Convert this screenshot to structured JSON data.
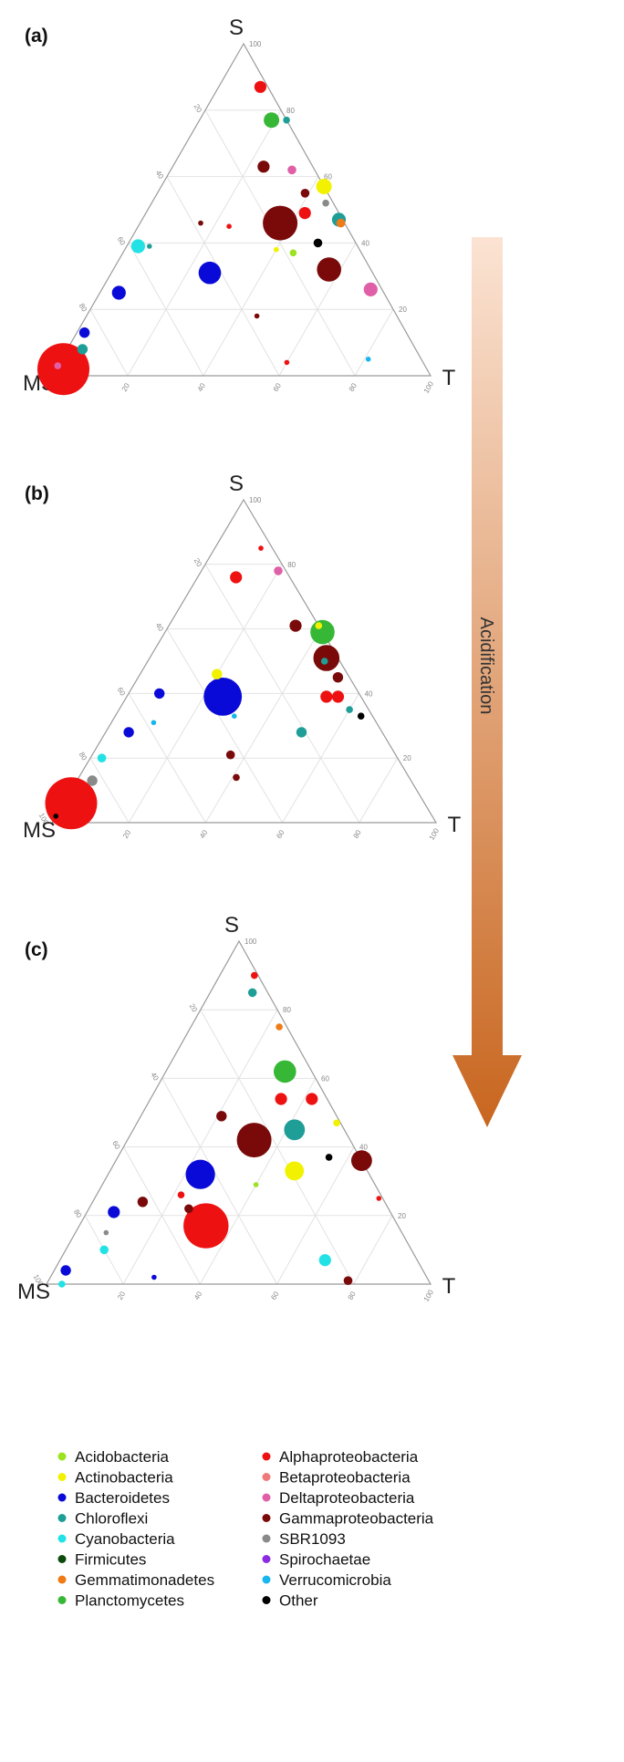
{
  "figure": {
    "arrow_label": "Acidification"
  },
  "legend": [
    {
      "name": "Acidobacteria",
      "color": "#9be320"
    },
    {
      "name": "Actinobacteria",
      "color": "#f2f200"
    },
    {
      "name": "Bacteroidetes",
      "color": "#0a0ad8"
    },
    {
      "name": "Chloroflexi",
      "color": "#1f9e97"
    },
    {
      "name": "Cyanobacteria",
      "color": "#22e2e6"
    },
    {
      "name": "Firmicutes",
      "color": "#0b4a0b"
    },
    {
      "name": "Gemmatimonadetes",
      "color": "#f07a16"
    },
    {
      "name": "Planctomycetes",
      "color": "#36b836"
    },
    {
      "name": "Alphaproteobacteria",
      "color": "#ee1111"
    },
    {
      "name": "Betaproteobacteria",
      "color": "#f07a7a"
    },
    {
      "name": "Deltaproteobacteria",
      "color": "#e060a8"
    },
    {
      "name": "Gammaproteobacteria",
      "color": "#7a0a0a"
    },
    {
      "name": "SBR1093",
      "color": "#8a8a8a"
    },
    {
      "name": "Spirochaetae",
      "color": "#8a2be2"
    },
    {
      "name": "Verrucomicrobia",
      "color": "#18b6ee"
    },
    {
      "name": "Other",
      "color": "#000000"
    }
  ],
  "chart_data": [
    {
      "type": "scatter",
      "subtype": "ternary",
      "panel": "(a)",
      "vertices": {
        "top": "S",
        "left": "MS",
        "right": "T"
      },
      "ticks": [
        "20",
        "40",
        "60",
        "80",
        "100"
      ],
      "grid": true,
      "points": [
        {
          "s": 2,
          "t": 2,
          "size": 30,
          "group": "Alphaproteobacteria"
        },
        {
          "s": 8,
          "t": 4,
          "size": 6,
          "group": "Chloroflexi"
        },
        {
          "s": 13,
          "t": 2,
          "size": 6,
          "group": "Bacteroidetes"
        },
        {
          "s": 25,
          "t": 5,
          "size": 8,
          "group": "Bacteroidetes"
        },
        {
          "s": 39,
          "t": 3,
          "size": 8,
          "group": "Cyanobacteria"
        },
        {
          "s": 39,
          "t": 6,
          "size": 3,
          "group": "Chloroflexi"
        },
        {
          "s": 31,
          "t": 26,
          "size": 13,
          "group": "Bacteroidetes"
        },
        {
          "s": 46,
          "t": 37,
          "size": 20,
          "group": "Gammaproteobacteria"
        },
        {
          "s": 49,
          "t": 42,
          "size": 7,
          "group": "Alphaproteobacteria"
        },
        {
          "s": 38,
          "t": 40,
          "size": 3,
          "group": "Actinobacteria"
        },
        {
          "s": 63,
          "t": 24,
          "size": 7,
          "group": "Gammaproteobacteria"
        },
        {
          "s": 62,
          "t": 32,
          "size": 5,
          "group": "Deltaproteobacteria"
        },
        {
          "s": 77,
          "t": 19,
          "size": 9,
          "group": "Planctomycetes"
        },
        {
          "s": 87,
          "t": 11,
          "size": 7,
          "group": "Alphaproteobacteria"
        },
        {
          "s": 77,
          "t": 23,
          "size": 4,
          "group": "Chloroflexi"
        },
        {
          "s": 57,
          "t": 43,
          "size": 9,
          "group": "Actinobacteria"
        },
        {
          "s": 47,
          "t": 52,
          "size": 8,
          "group": "Chloroflexi"
        },
        {
          "s": 55,
          "t": 39,
          "size": 5,
          "group": "Gammaproteobacteria"
        },
        {
          "s": 52,
          "t": 46,
          "size": 4,
          "group": "SBR1093"
        },
        {
          "s": 46,
          "t": 53,
          "size": 5,
          "group": "Gemmatimonadetes"
        },
        {
          "s": 40,
          "t": 50,
          "size": 5,
          "group": "Other"
        },
        {
          "s": 32,
          "t": 57,
          "size": 14,
          "group": "Gammaproteobacteria"
        },
        {
          "s": 26,
          "t": 71,
          "size": 8,
          "group": "Deltaproteobacteria"
        },
        {
          "s": 37,
          "t": 45,
          "size": 4,
          "group": "Acidobacteria"
        },
        {
          "s": 46,
          "t": 16,
          "size": 3,
          "group": "Gammaproteobacteria"
        },
        {
          "s": 45,
          "t": 24,
          "size": 3,
          "group": "Alphaproteobacteria"
        },
        {
          "s": 3,
          "t": 0,
          "size": 4,
          "group": "Deltaproteobacteria"
        },
        {
          "s": 5,
          "t": 81,
          "size": 3,
          "group": "Verrucomicrobia"
        },
        {
          "s": 4,
          "t": 60,
          "size": 3,
          "group": "Alphaproteobacteria"
        },
        {
          "s": 18,
          "t": 45,
          "size": 3,
          "group": "Gammaproteobacteria"
        }
      ]
    },
    {
      "type": "scatter",
      "subtype": "ternary",
      "panel": "(b)",
      "vertices": {
        "top": "S",
        "left": "MS",
        "right": "T"
      },
      "ticks": [
        "20",
        "40",
        "60",
        "80",
        "100"
      ],
      "grid": true,
      "points": [
        {
          "s": 6,
          "t": 2,
          "size": 30,
          "group": "Alphaproteobacteria"
        },
        {
          "s": 13,
          "t": 4,
          "size": 6,
          "group": "SBR1093"
        },
        {
          "s": 20,
          "t": 3,
          "size": 5,
          "group": "Cyanobacteria"
        },
        {
          "s": 28,
          "t": 6,
          "size": 6,
          "group": "Bacteroidetes"
        },
        {
          "s": 40,
          "t": 8,
          "size": 6,
          "group": "Bacteroidetes"
        },
        {
          "s": 39,
          "t": 25,
          "size": 22,
          "group": "Bacteroidetes"
        },
        {
          "s": 46,
          "t": 20,
          "size": 6,
          "group": "Actinobacteria"
        },
        {
          "s": 21,
          "t": 36,
          "size": 5,
          "group": "Gammaproteobacteria"
        },
        {
          "s": 51,
          "t": 46,
          "size": 15,
          "group": "Gammaproteobacteria"
        },
        {
          "s": 59,
          "t": 41,
          "size": 14,
          "group": "Planctomycetes"
        },
        {
          "s": 61,
          "t": 33,
          "size": 7,
          "group": "Gammaproteobacteria"
        },
        {
          "s": 76,
          "t": 10,
          "size": 7,
          "group": "Alphaproteobacteria"
        },
        {
          "s": 78,
          "t": 20,
          "size": 5,
          "group": "Deltaproteobacteria"
        },
        {
          "s": 85,
          "t": 12,
          "size": 3,
          "group": "Alphaproteobacteria"
        },
        {
          "s": 61,
          "t": 39,
          "size": 4,
          "group": "Actinobacteria"
        },
        {
          "s": 50,
          "t": 46,
          "size": 4,
          "group": "Chloroflexi"
        },
        {
          "s": 39,
          "t": 52,
          "size": 7,
          "group": "Alphaproteobacteria"
        },
        {
          "s": 39,
          "t": 55,
          "size": 7,
          "group": "Alphaproteobacteria"
        },
        {
          "s": 45,
          "t": 52,
          "size": 6,
          "group": "Gammaproteobacteria"
        },
        {
          "s": 28,
          "t": 51,
          "size": 6,
          "group": "Chloroflexi"
        },
        {
          "s": 33,
          "t": 64,
          "size": 4,
          "group": "Other"
        },
        {
          "s": 14,
          "t": 41,
          "size": 4,
          "group": "Gammaproteobacteria"
        },
        {
          "s": 35,
          "t": 60,
          "size": 4,
          "group": "Chloroflexi"
        },
        {
          "s": 31,
          "t": 11,
          "size": 3,
          "group": "Verrucomicrobia"
        },
        {
          "s": 33,
          "t": 31,
          "size": 3,
          "group": "Verrucomicrobia"
        },
        {
          "s": 2,
          "t": 0,
          "size": 3,
          "group": "Other"
        }
      ]
    },
    {
      "type": "scatter",
      "subtype": "ternary",
      "panel": "(c)",
      "vertices": {
        "top": "S",
        "left": "MS",
        "right": "T"
      },
      "ticks": [
        "20",
        "40",
        "60",
        "80",
        "100"
      ],
      "grid": true,
      "points": [
        {
          "s": 4,
          "t": 3,
          "size": 6,
          "group": "Bacteroidetes"
        },
        {
          "s": 10,
          "t": 10,
          "size": 5,
          "group": "Cyanobacteria"
        },
        {
          "s": 21,
          "t": 7,
          "size": 7,
          "group": "Bacteroidetes"
        },
        {
          "s": 24,
          "t": 13,
          "size": 6,
          "group": "Gammaproteobacteria"
        },
        {
          "s": 32,
          "t": 24,
          "size": 17,
          "group": "Bacteroidetes"
        },
        {
          "s": 17,
          "t": 33,
          "size": 26,
          "group": "Alphaproteobacteria"
        },
        {
          "s": 22,
          "t": 26,
          "size": 5,
          "group": "Gammaproteobacteria"
        },
        {
          "s": 42,
          "t": 33,
          "size": 20,
          "group": "Gammaproteobacteria"
        },
        {
          "s": 45,
          "t": 42,
          "size": 12,
          "group": "Chloroflexi"
        },
        {
          "s": 33,
          "t": 48,
          "size": 11,
          "group": "Actinobacteria"
        },
        {
          "s": 62,
          "t": 31,
          "size": 13,
          "group": "Planctomycetes"
        },
        {
          "s": 54,
          "t": 34,
          "size": 7,
          "group": "Alphaproteobacteria"
        },
        {
          "s": 54,
          "t": 42,
          "size": 7,
          "group": "Alphaproteobacteria"
        },
        {
          "s": 49,
          "t": 21,
          "size": 6,
          "group": "Gammaproteobacteria"
        },
        {
          "s": 85,
          "t": 11,
          "size": 5,
          "group": "Chloroflexi"
        },
        {
          "s": 90,
          "t": 9,
          "size": 4,
          "group": "Alphaproteobacteria"
        },
        {
          "s": 75,
          "t": 23,
          "size": 4,
          "group": "Gemmatimonadetes"
        },
        {
          "s": 36,
          "t": 64,
          "size": 12,
          "group": "Gammaproteobacteria"
        },
        {
          "s": 37,
          "t": 55,
          "size": 4,
          "group": "Other"
        },
        {
          "s": 47,
          "t": 52,
          "size": 4,
          "group": "Actinobacteria"
        },
        {
          "s": 7,
          "t": 69,
          "size": 7,
          "group": "Cyanobacteria"
        },
        {
          "s": 25,
          "t": 74,
          "size": 3,
          "group": "Alphaproteobacteria"
        },
        {
          "s": 1,
          "t": 78,
          "size": 5,
          "group": "Gammaproteobacteria"
        },
        {
          "s": 0,
          "t": 4,
          "size": 4,
          "group": "Cyanobacteria"
        },
        {
          "s": 15,
          "t": 8,
          "size": 3,
          "group": "SBR1093"
        },
        {
          "s": 2,
          "t": 27,
          "size": 3,
          "group": "Bacteroidetes"
        },
        {
          "s": 26,
          "t": 22,
          "size": 4,
          "group": "Alphaproteobacteria"
        },
        {
          "s": 29,
          "t": 40,
          "size": 3,
          "group": "Acidobacteria"
        }
      ]
    }
  ]
}
